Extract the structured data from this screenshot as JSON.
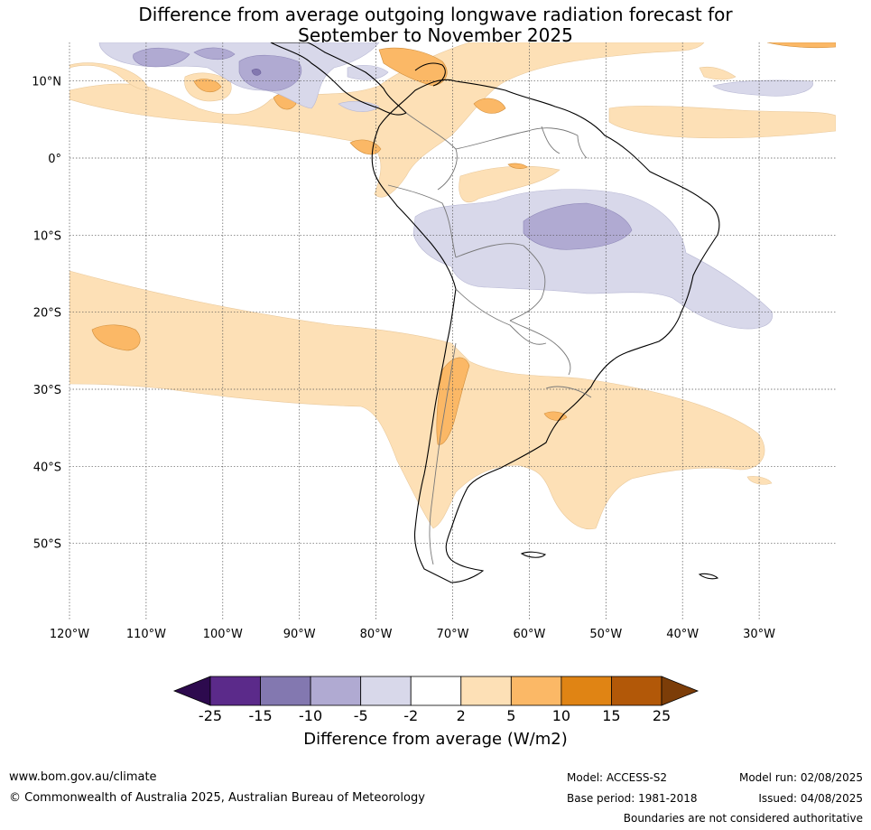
{
  "title": {
    "line1": "Difference from average outgoing longwave radiation forecast for",
    "line2": "September to November 2025"
  },
  "map": {
    "lat_labels": [
      "10°N",
      "0°",
      "10°S",
      "20°S",
      "30°S",
      "40°S",
      "50°S"
    ],
    "lon_labels": [
      "120°W",
      "110°W",
      "100°W",
      "90°W",
      "80°W",
      "70°W",
      "60°W",
      "50°W",
      "40°W",
      "30°W"
    ],
    "lat_range": [
      15,
      -60
    ],
    "lon_range": [
      -120,
      -20
    ]
  },
  "colorbar": {
    "ticks": [
      "-25",
      "-15",
      "-10",
      "-5",
      "-2",
      "2",
      "5",
      "10",
      "15",
      "25"
    ],
    "colors": [
      "#2d0a4e",
      "#5b2a8a",
      "#8378b0",
      "#b0aad2",
      "#d8d8ea",
      "#ffffff",
      "#fde0b6",
      "#fbb866",
      "#e08414",
      "#b25808",
      "#7c3d08"
    ],
    "label": "Difference from average (W/m2)"
  },
  "footer": {
    "website": "www.bom.gov.au/climate",
    "copyright": "© Commonwealth of Australia 2025, Australian Bureau of Meteorology",
    "model": "Model: ACCESS-S2",
    "base_period": "Base period: 1981-2018",
    "model_run": "Model run: 02/08/2025",
    "issued": "Issued: 04/08/2025",
    "disclaimer": "Boundaries are not considered authoritative"
  }
}
